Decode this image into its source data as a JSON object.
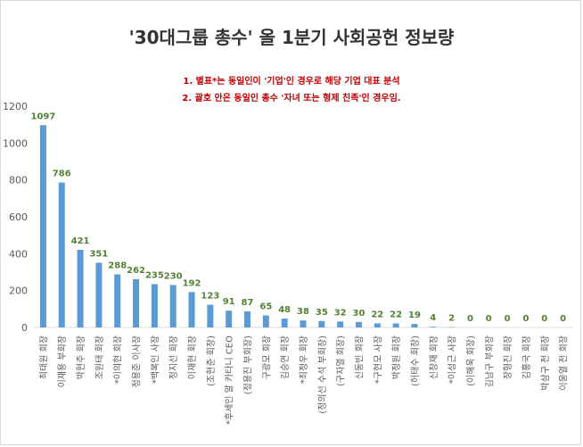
{
  "title": "'30대그룹 총수' 올 1분기 사회공헌 정보량",
  "notes": [
    "1. 별표*는 동일인이 '기업'인 경우로 해당 기업 대표 분석",
    "2. 괄호 안은 동일인 총수 '자녀 또는 형제 친족'인 경우임."
  ],
  "colors": {
    "bar": "#5b9bd5",
    "value_label": "#548235",
    "axis_text": "#595959",
    "grid": "#d9d9d9"
  },
  "chart_data": {
    "type": "bar",
    "title": "'30대그룹 총수' 올 1분기 사회공헌 정보량",
    "xlabel": "",
    "ylabel": "",
    "ylim": [
      0,
      1200
    ],
    "yticks": [
      0,
      200,
      400,
      600,
      800,
      1000,
      1200
    ],
    "grid": false,
    "categories": [
      "최태원 회장",
      "이재용 부회장",
      "박현주 회장",
      "조원태 회장",
      "*이의현 회장",
      "정용준 이사장",
      "*백복인 사장",
      "정지선 회장",
      "이재현 회장",
      "(조현준 회장)",
      "*후세인 알 카타니 CEO",
      "(정용진 부회장)",
      "구광모 회장",
      "김승연 회장",
      "*최정우 회장",
      "(정의선 수석 부회장)",
      "(구자열 회장)",
      "신동빈 회장",
      "*구현모 사장",
      "박정원 회장",
      "(허태수 회장)",
      "신창재 회장",
      "*이성근 사장",
      "(이해욱 회장)",
      "김남구 부회장",
      "장형진 회장",
      "김홍국 회장",
      "박삼구 전 회장",
      "이웅열 전 회장"
    ],
    "values": [
      1097,
      786,
      421,
      351,
      288,
      262,
      235,
      230,
      192,
      123,
      91,
      87,
      65,
      48,
      38,
      35,
      32,
      30,
      22,
      22,
      19,
      4,
      2,
      0,
      0,
      0,
      0,
      0,
      0
    ]
  }
}
